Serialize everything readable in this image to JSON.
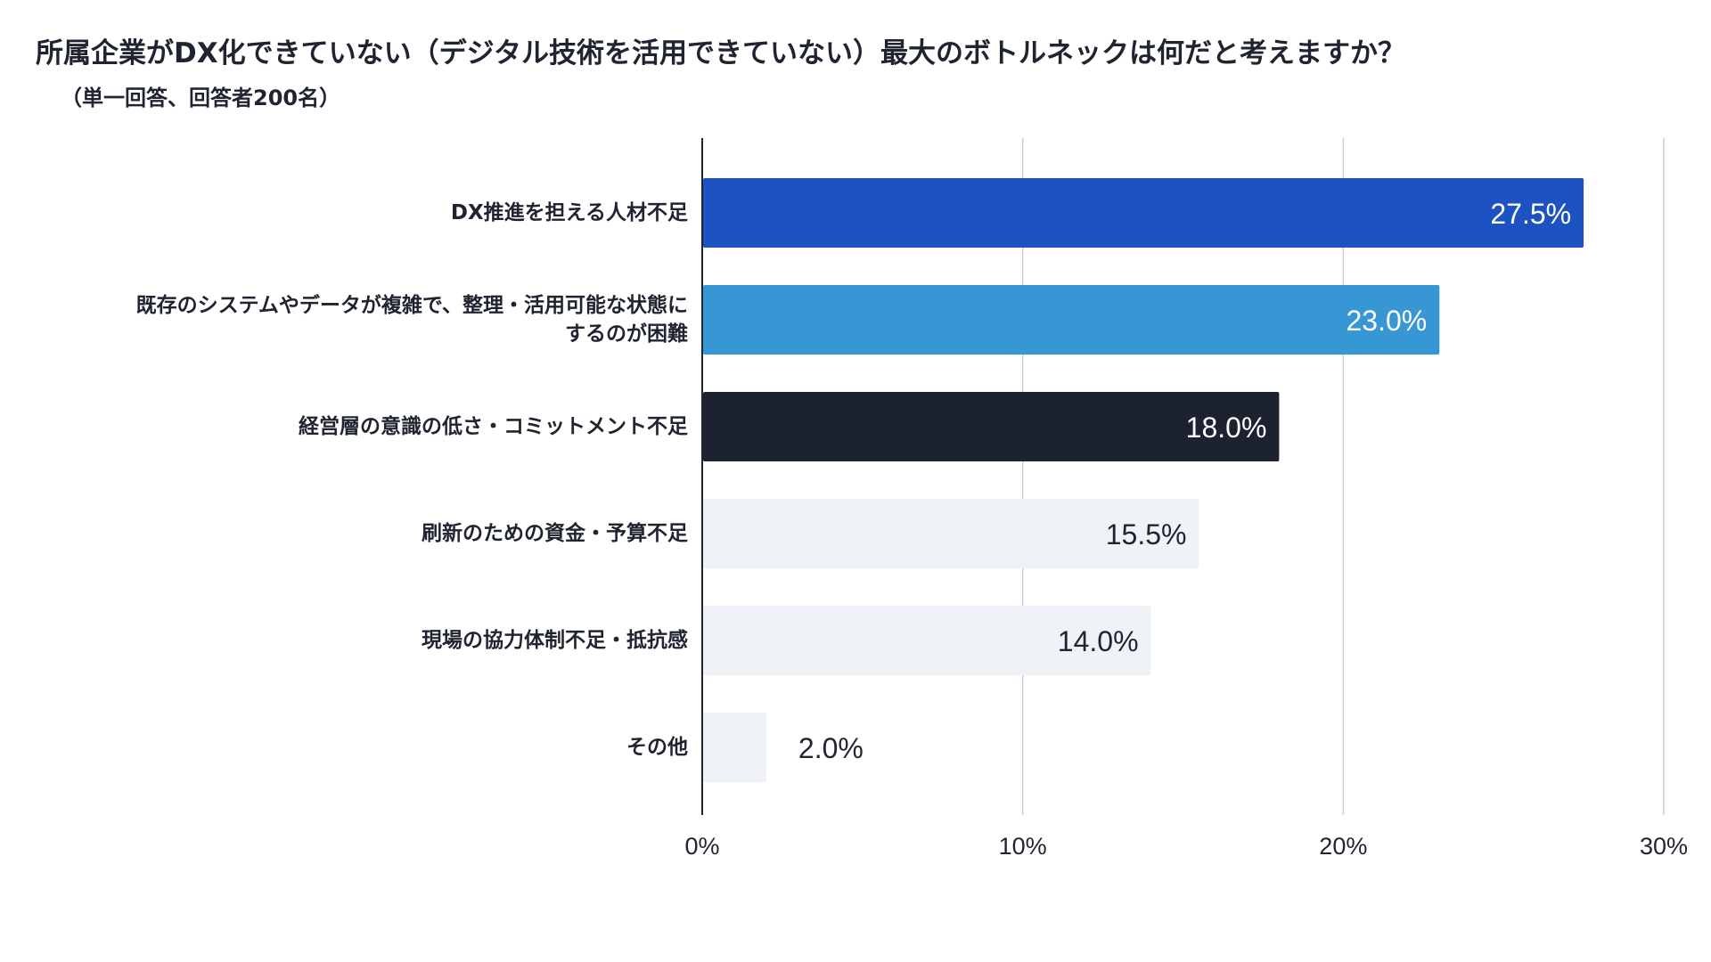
{
  "chart_data": {
    "type": "bar",
    "orientation": "horizontal",
    "title": "所属企業がDX化できていない（デジタル技術を活用できていない）最大のボトルネックは何だと考えますか？",
    "subtitle": "（単一回答、回答者200名）",
    "categories": [
      [
        "DX推進を担える人材不足"
      ],
      [
        "既存のシステムやデータが複雑で、整理・活用可能な状態に",
        "するのが困難"
      ],
      [
        "経営層の意識の低さ・コミットメント不足"
      ],
      [
        "刷新のための資金・予算不足"
      ],
      [
        "現場の協力体制不足・抵抗感"
      ],
      [
        "その他"
      ]
    ],
    "values": [
      27.5,
      23.0,
      18.0,
      15.5,
      14.0,
      2.0
    ],
    "value_labels": [
      "27.5%",
      "23.0%",
      "18.0%",
      "15.5%",
      "14.0%",
      "2.0%"
    ],
    "bar_colors": [
      "#1c52c2",
      "#3796d4",
      "#1d2230",
      "#eff2f7",
      "#eff2f7",
      "#eff2f7"
    ],
    "value_label_colors": [
      "#ffffff",
      "#ffffff",
      "#ffffff",
      "#1f2430",
      "#1f2430",
      "#1f2430"
    ],
    "xlim": [
      0,
      30
    ],
    "xticks": [
      0,
      10,
      20,
      30
    ],
    "xtick_labels": [
      "0%",
      "10%",
      "20%",
      "30%"
    ],
    "grid": true,
    "xlabel": "",
    "ylabel": ""
  }
}
